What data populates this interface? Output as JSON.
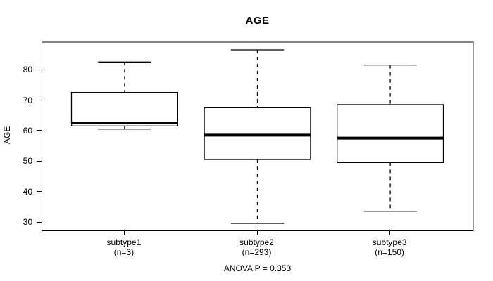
{
  "chart_data": {
    "type": "boxplot",
    "title": "AGE",
    "xlabel": "",
    "ylabel": "AGE",
    "annotation": "ANOVA P = 0.353",
    "grid": false,
    "legend": "none",
    "ylim": [
      27.7,
      89.3
    ],
    "yticks": [
      30,
      40,
      50,
      60,
      70,
      80
    ],
    "xlim": [
      0.38,
      3.62
    ],
    "box_width": 0.8,
    "cap_width": 0.4,
    "groups": [
      {
        "x": 1,
        "label": "subtype1",
        "sublabel": "(n=3)",
        "n": 3,
        "min": 61,
        "q1": 62,
        "median": 63,
        "q3": 73,
        "max": 83
      },
      {
        "x": 2,
        "label": "subtype2",
        "sublabel": "(n=293)",
        "n": 293,
        "min": 30,
        "q1": 51,
        "median": 59,
        "q3": 68,
        "max": 87
      },
      {
        "x": 3,
        "label": "subtype3",
        "sublabel": "(n=150)",
        "n": 150,
        "min": 34,
        "q1": 50,
        "median": 58,
        "q3": 69,
        "max": 82
      }
    ],
    "colors": {
      "background": "#ffffff",
      "text": "#000000",
      "box_border": "#000000",
      "box_fill": "#ffffff",
      "median": "#000000",
      "whisker": "#000000",
      "frame_light": "#8a8a8a",
      "frame_dark": "#000000"
    }
  }
}
